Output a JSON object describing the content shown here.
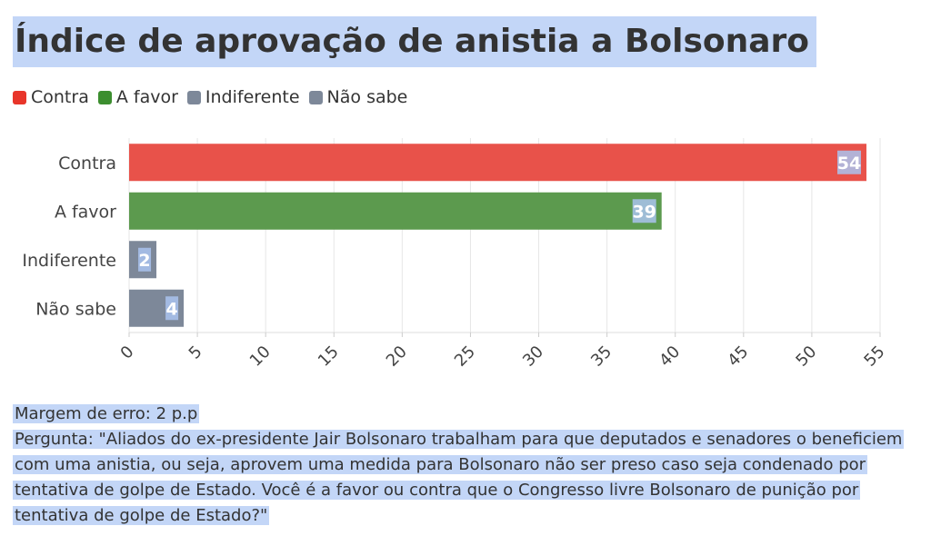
{
  "chart_data": {
    "type": "bar",
    "orientation": "horizontal",
    "title": "Índice de aprovação de anistia a Bolsonaro",
    "categories": [
      "Contra",
      "A favor",
      "Indiferente",
      "Não sabe"
    ],
    "values": [
      54,
      39,
      2,
      4
    ],
    "colors": [
      "#e8524a",
      "#5c9a4e",
      "#7d8899",
      "#7d8899"
    ],
    "legend": [
      "Contra",
      "A favor",
      "Indiferente",
      "Não sabe"
    ],
    "legend_colors": [
      "#e8352a",
      "#3c8e2f",
      "#7d8899",
      "#7d8899"
    ],
    "legend_position": "top-left",
    "xlim": [
      0,
      55
    ],
    "xticks": [
      0,
      5,
      10,
      15,
      20,
      25,
      30,
      35,
      40,
      45,
      50,
      55
    ],
    "grid": true
  },
  "footer": {
    "margin": "Margem de erro: 2 p.p",
    "question": "Pergunta: \"Aliados do ex-presidente Jair Bolsonaro trabalham para que deputados e senadores o beneficiem com uma anistia, ou seja, aprovem uma medida para Bolsonaro não ser preso caso seja condenado por tentativa de golpe de Estado. Você é a favor ou contra que o Congresso livre Bolsonaro de punição por tentativa de golpe de Estado?\""
  }
}
